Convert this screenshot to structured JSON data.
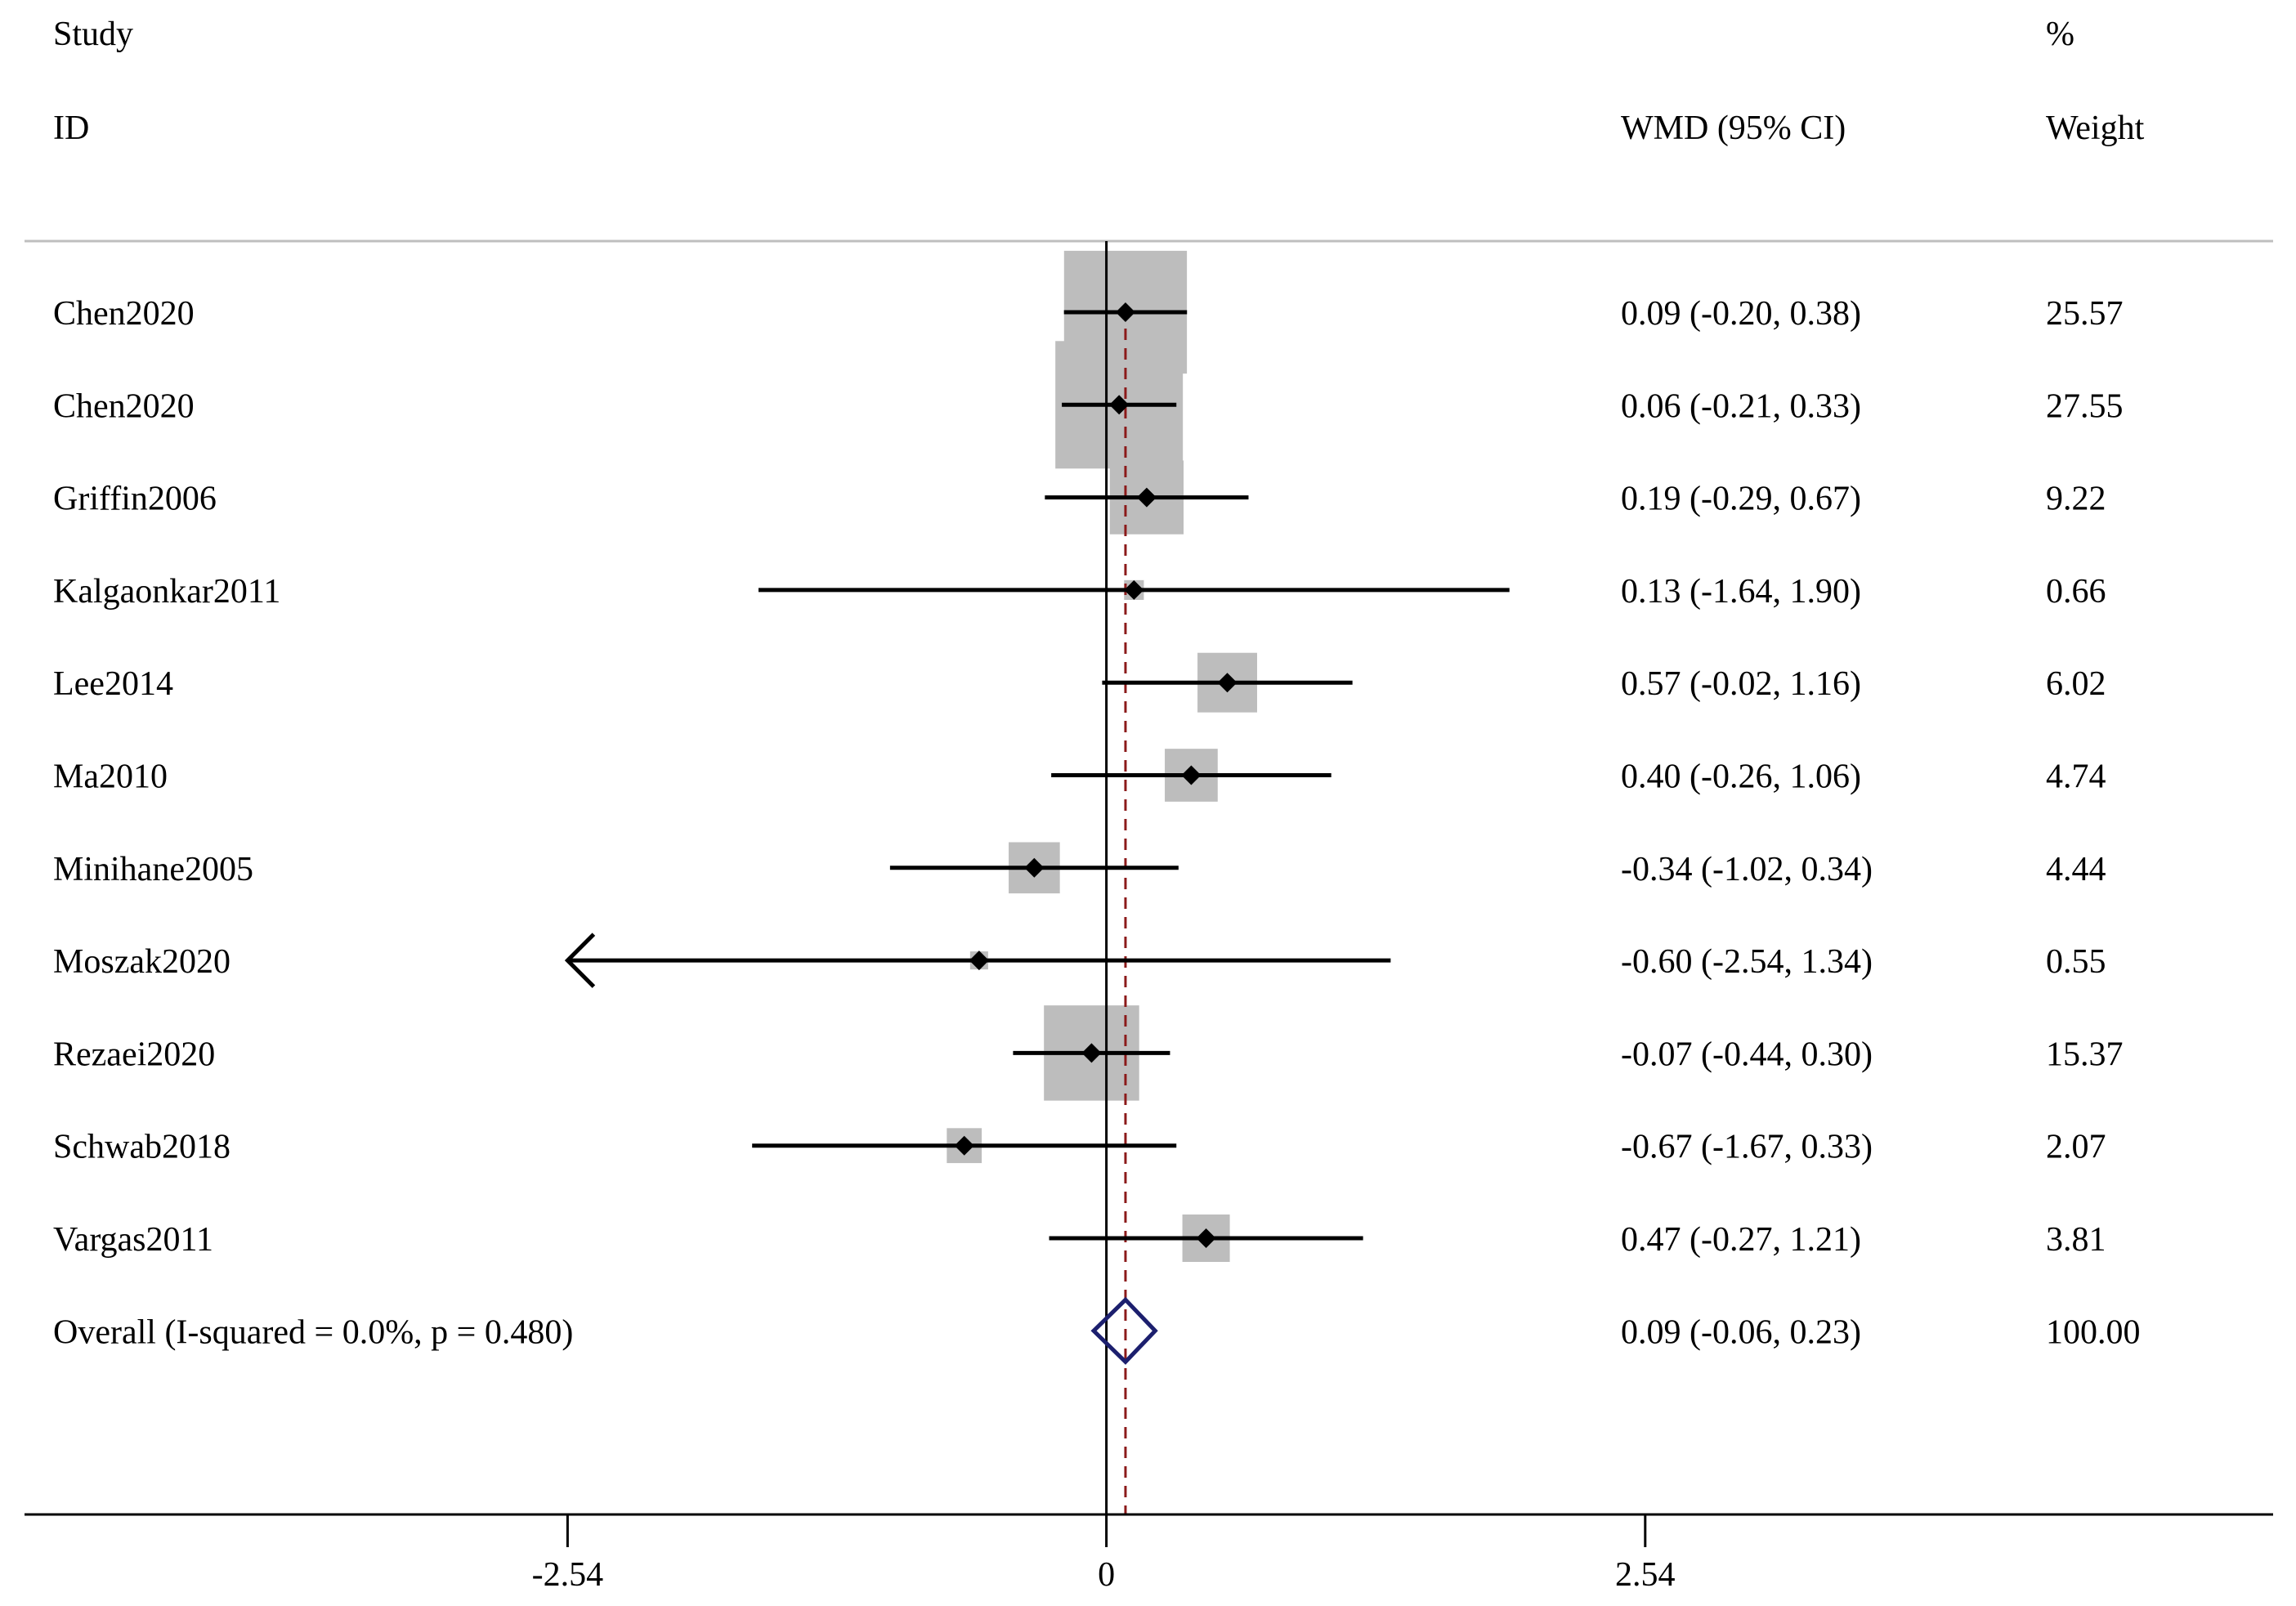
{
  "chart_data": {
    "type": "forest",
    "headers": {
      "study_line1": "Study",
      "study_line2": "ID",
      "effect": "WMD (95% CI)",
      "weight_line1": "%",
      "weight_line2": "Weight"
    },
    "xlim": [
      -5.1,
      5.5
    ],
    "ticks": [
      {
        "value": -2.54,
        "label": "-2.54"
      },
      {
        "value": 0,
        "label": "0"
      },
      {
        "value": 2.54,
        "label": "2.54"
      }
    ],
    "null_value": 0,
    "studies": [
      {
        "id": "Chen2020",
        "est": 0.09,
        "lo": -0.2,
        "hi": 0.38,
        "ci_text": "0.09 (-0.20, 0.38)",
        "weight": 25.57,
        "weight_text": "25.57"
      },
      {
        "id": "Chen2020",
        "est": 0.06,
        "lo": -0.21,
        "hi": 0.33,
        "ci_text": "0.06 (-0.21, 0.33)",
        "weight": 27.55,
        "weight_text": "27.55"
      },
      {
        "id": "Griffin2006",
        "est": 0.19,
        "lo": -0.29,
        "hi": 0.67,
        "ci_text": "0.19 (-0.29, 0.67)",
        "weight": 9.22,
        "weight_text": "9.22"
      },
      {
        "id": "Kalgaonkar2011",
        "est": 0.13,
        "lo": -1.64,
        "hi": 1.9,
        "ci_text": "0.13 (-1.64, 1.90)",
        "weight": 0.66,
        "weight_text": "0.66"
      },
      {
        "id": "Lee2014",
        "est": 0.57,
        "lo": -0.02,
        "hi": 1.16,
        "ci_text": "0.57 (-0.02, 1.16)",
        "weight": 6.02,
        "weight_text": "6.02"
      },
      {
        "id": "Ma2010",
        "est": 0.4,
        "lo": -0.26,
        "hi": 1.06,
        "ci_text": "0.40 (-0.26, 1.06)",
        "weight": 4.74,
        "weight_text": "4.74"
      },
      {
        "id": "Minihane2005",
        "est": -0.34,
        "lo": -1.02,
        "hi": 0.34,
        "ci_text": "-0.34 (-1.02, 0.34)",
        "weight": 4.44,
        "weight_text": "4.44"
      },
      {
        "id": "Moszak2020",
        "est": -0.6,
        "lo": -2.54,
        "hi": 1.34,
        "ci_text": "-0.60 (-2.54, 1.34)",
        "weight": 0.55,
        "weight_text": "0.55",
        "truncated_low": true
      },
      {
        "id": "Rezaei2020",
        "est": -0.07,
        "lo": -0.44,
        "hi": 0.3,
        "ci_text": "-0.07 (-0.44, 0.30)",
        "weight": 15.37,
        "weight_text": "15.37"
      },
      {
        "id": "Schwab2018",
        "est": -0.67,
        "lo": -1.67,
        "hi": 0.33,
        "ci_text": "-0.67 (-1.67, 0.33)",
        "weight": 2.07,
        "weight_text": "2.07"
      },
      {
        "id": "Vargas2011",
        "est": 0.47,
        "lo": -0.27,
        "hi": 1.21,
        "ci_text": "0.47 (-0.27, 1.21)",
        "weight": 3.81,
        "weight_text": "3.81"
      }
    ],
    "overall": {
      "label": "Overall  (I-squared = 0.0%, p = 0.480)",
      "est": 0.09,
      "lo": -0.06,
      "hi": 0.23,
      "ci_text": "0.09 (-0.06, 0.23)",
      "weight_text": "100.00"
    },
    "colors": {
      "box": "#bdbdbd",
      "line": "#000000",
      "diamond": "#1c1f6e",
      "ref_line": "#8b1a1a",
      "separator": "#bfbfbf"
    }
  }
}
